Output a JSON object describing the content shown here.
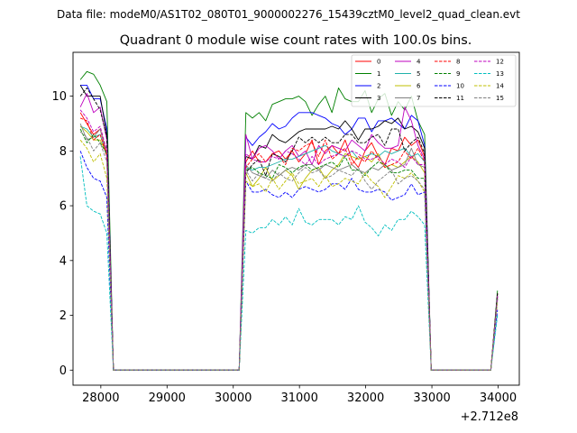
{
  "chart_data": {
    "type": "line",
    "suptitle": "Data file: modeM0/AS1T02_080T01_9000002276_15439cztM0_level2_quad_clean.evt",
    "title": "Quadrant 0 module wise count rates with 100.0s bins.",
    "xlabel": "",
    "ylabel": "",
    "x_offset_label": "+2.712e8",
    "xlim": [
      27580,
      34320
    ],
    "ylim": [
      -0.55,
      11.6
    ],
    "xticks": [
      28000,
      29000,
      30000,
      31000,
      32000,
      33000,
      34000
    ],
    "xtick_labels": [
      "28000",
      "29000",
      "30000",
      "31000",
      "32000",
      "33000",
      "34000"
    ],
    "yticks": [
      0,
      2,
      4,
      6,
      8,
      10
    ],
    "ytick_labels": [
      "0",
      "2",
      "4",
      "6",
      "8",
      "10"
    ],
    "legend_location": "upper right",
    "legend_columns": 4,
    "x": [
      27690,
      27790,
      27890,
      27990,
      28090,
      28190,
      30090,
      30190,
      30290,
      30390,
      30490,
      30590,
      30690,
      30790,
      30890,
      30990,
      31090,
      31190,
      31290,
      31390,
      31490,
      31590,
      31690,
      31790,
      31890,
      31990,
      32090,
      32190,
      32290,
      32390,
      32490,
      32590,
      32690,
      32790,
      32890,
      32990,
      33890,
      33990
    ],
    "series": [
      {
        "name": "0",
        "color": "#ff0000",
        "dash": "solid",
        "values": [
          9.4,
          9.0,
          8.6,
          8.8,
          7.9,
          0,
          0,
          7.6,
          8.0,
          7.6,
          7.6,
          7.9,
          8.0,
          7.7,
          8.0,
          7.6,
          7.9,
          8.4,
          7.5,
          8.0,
          8.2,
          7.9,
          8.4,
          7.7,
          7.4,
          8.0,
          8.3,
          7.8,
          7.5,
          8.1,
          8.0,
          8.5,
          8.2,
          8.4,
          7.8,
          0,
          0,
          2.8
        ]
      },
      {
        "name": "1",
        "color": "#008000",
        "dash": "solid",
        "values": [
          10.6,
          10.9,
          10.8,
          10.4,
          9.8,
          0,
          0,
          9.4,
          9.2,
          9.4,
          9.1,
          9.7,
          9.8,
          9.9,
          9.9,
          10.0,
          9.8,
          9.3,
          9.7,
          10.0,
          9.4,
          10.3,
          9.9,
          9.8,
          9.8,
          10.2,
          9.4,
          9.9,
          10.1,
          9.3,
          9.8,
          9.5,
          10.0,
          9.1,
          8.6,
          0,
          0,
          2.9
        ]
      },
      {
        "name": "2",
        "color": "#0000ff",
        "dash": "solid",
        "values": [
          10.4,
          10.4,
          9.9,
          9.9,
          8.8,
          0,
          0,
          8.5,
          8.2,
          8.5,
          8.7,
          9.0,
          8.8,
          8.9,
          9.2,
          9.4,
          9.4,
          9.4,
          9.3,
          9.2,
          9.0,
          8.9,
          8.6,
          8.8,
          9.2,
          9.2,
          8.7,
          9.1,
          9.1,
          9.2,
          9.0,
          8.8,
          9.3,
          9.1,
          8.2,
          0,
          0,
          2.7
        ]
      },
      {
        "name": "3",
        "color": "#000000",
        "dash": "solid",
        "values": [
          10.4,
          10.0,
          10.0,
          10.0,
          8.6,
          0,
          0,
          7.8,
          7.7,
          8.2,
          8.1,
          8.6,
          8.4,
          8.3,
          8.5,
          8.7,
          8.8,
          8.8,
          8.8,
          8.8,
          8.9,
          8.8,
          9.1,
          8.8,
          8.4,
          8.8,
          8.8,
          8.9,
          9.1,
          9.0,
          9.2,
          8.8,
          8.9,
          8.7,
          8.1,
          0,
          0,
          2.8
        ]
      },
      {
        "name": "4",
        "color": "#bf00bf",
        "dash": "solid",
        "values": [
          9.6,
          10.1,
          9.4,
          9.6,
          8.4,
          0,
          0,
          8.6,
          7.7,
          8.1,
          8.2,
          8.0,
          7.7,
          8.0,
          8.2,
          7.8,
          8.0,
          7.5,
          8.2,
          7.9,
          8.2,
          8.1,
          8.0,
          8.4,
          8.2,
          8.0,
          8.6,
          8.3,
          8.1,
          8.1,
          8.2,
          9.6,
          9.1,
          8.2,
          7.7,
          0,
          0,
          2.6
        ]
      },
      {
        "name": "5",
        "color": "#20b2aa",
        "dash": "solid",
        "values": [
          8.9,
          8.8,
          8.5,
          8.6,
          7.8,
          0,
          0,
          7.4,
          7.3,
          7.4,
          7.4,
          7.5,
          7.6,
          7.7,
          7.7,
          7.8,
          7.9,
          8.0,
          8.1,
          8.2,
          8.0,
          7.9,
          7.8,
          8.0,
          7.7,
          7.8,
          7.9,
          7.8,
          8.0,
          7.9,
          8.0,
          8.1,
          7.8,
          7.9,
          7.6,
          0,
          0,
          2.7
        ]
      },
      {
        "name": "6",
        "color": "#bfbf00",
        "dash": "solid",
        "values": [
          8.9,
          8.7,
          8.4,
          8.4,
          7.9,
          0,
          0,
          7.2,
          6.7,
          7.0,
          7.4,
          6.9,
          7.1,
          7.3,
          7.1,
          6.6,
          7.0,
          7.3,
          7.4,
          7.0,
          7.3,
          7.5,
          7.9,
          7.8,
          7.7,
          7.8,
          7.6,
          7.9,
          7.4,
          7.5,
          7.4,
          7.6,
          7.8,
          7.6,
          7.2,
          0,
          0,
          2.7
        ]
      },
      {
        "name": "7",
        "color": "#808080",
        "dash": "solid",
        "values": [
          9.0,
          8.4,
          8.5,
          8.8,
          7.8,
          0,
          0,
          7.5,
          7.2,
          7.1,
          7.0,
          7.3,
          7.1,
          7.3,
          7.4,
          7.3,
          7.5,
          7.5,
          7.3,
          7.5,
          7.4,
          7.3,
          7.4,
          7.5,
          7.3,
          7.2,
          7.4,
          7.3,
          7.5,
          7.3,
          7.4,
          7.5,
          8.1,
          7.5,
          7.4,
          0,
          0,
          2.7
        ]
      },
      {
        "name": "8",
        "color": "#ff0000",
        "dash": "dashed",
        "values": [
          9.2,
          9.1,
          8.4,
          8.6,
          7.8,
          0,
          0,
          7.4,
          7.7,
          7.9,
          7.6,
          7.9,
          7.8,
          7.5,
          8.1,
          8.0,
          8.2,
          8.3,
          7.8,
          8.4,
          7.7,
          7.9,
          8.1,
          7.5,
          7.8,
          7.6,
          8.0,
          7.7,
          7.4,
          7.5,
          7.6,
          8.0,
          7.7,
          8.1,
          7.6,
          0,
          0,
          2.7
        ]
      },
      {
        "name": "9",
        "color": "#008000",
        "dash": "dashed",
        "values": [
          8.8,
          8.3,
          8.6,
          8.3,
          7.9,
          0,
          0,
          7.3,
          7.4,
          7.2,
          7.1,
          7.0,
          7.5,
          7.4,
          7.2,
          7.4,
          7.5,
          7.3,
          7.4,
          7.5,
          7.6,
          7.4,
          7.8,
          7.3,
          7.3,
          7.1,
          7.4,
          7.6,
          7.5,
          7.2,
          7.2,
          7.3,
          7.3,
          7.0,
          7.0,
          0,
          0,
          2.6
        ]
      },
      {
        "name": "10",
        "color": "#0000ff",
        "dash": "dashed",
        "values": [
          8.0,
          7.4,
          7.0,
          6.9,
          6.3,
          0,
          0,
          6.9,
          6.5,
          6.5,
          6.6,
          6.4,
          6.3,
          6.5,
          6.3,
          6.6,
          6.7,
          6.6,
          6.5,
          6.6,
          6.8,
          6.8,
          6.6,
          7.0,
          6.6,
          6.5,
          6.5,
          6.6,
          6.5,
          6.2,
          6.3,
          6.4,
          6.8,
          6.4,
          6.5,
          0,
          0,
          2.2
        ]
      },
      {
        "name": "11",
        "color": "#000000",
        "dash": "dashed",
        "values": [
          10.0,
          10.3,
          9.9,
          9.5,
          8.5,
          0,
          0,
          7.2,
          7.5,
          7.7,
          7.1,
          7.9,
          7.8,
          7.6,
          8.0,
          8.5,
          8.3,
          8.5,
          8.3,
          8.5,
          8.3,
          8.3,
          8.6,
          8.6,
          8.3,
          8.3,
          8.5,
          8.6,
          8.2,
          8.8,
          8.8,
          8.0,
          8.3,
          8.5,
          7.9,
          0,
          0,
          2.8
        ]
      },
      {
        "name": "12",
        "color": "#bf00bf",
        "dash": "dashed",
        "values": [
          9.5,
          9.2,
          8.7,
          8.9,
          8.0,
          0,
          0,
          7.9,
          7.7,
          7.6,
          7.6,
          7.8,
          7.7,
          8.0,
          7.9,
          7.7,
          7.5,
          7.8,
          7.5,
          7.7,
          7.8,
          7.9,
          7.8,
          8.0,
          7.9,
          7.7,
          7.7,
          7.8,
          7.5,
          7.7,
          7.6,
          7.4,
          7.8,
          7.5,
          7.5,
          0,
          0,
          2.7
        ]
      },
      {
        "name": "13",
        "color": "#00bfbf",
        "dash": "dashed",
        "values": [
          7.8,
          6.0,
          5.8,
          5.7,
          5.0,
          0,
          0,
          5.1,
          5.0,
          5.2,
          5.2,
          5.5,
          5.3,
          5.6,
          5.3,
          5.9,
          5.4,
          5.3,
          5.5,
          5.5,
          5.5,
          5.3,
          5.6,
          5.5,
          6.0,
          5.4,
          5.2,
          4.9,
          5.3,
          5.1,
          5.5,
          5.5,
          5.8,
          5.6,
          5.3,
          0,
          0,
          2.0
        ]
      },
      {
        "name": "14",
        "color": "#bfbf00",
        "dash": "dashed",
        "values": [
          8.4,
          8.1,
          7.6,
          7.9,
          7.0,
          0,
          0,
          6.9,
          6.7,
          6.8,
          6.5,
          7.0,
          6.6,
          6.9,
          7.2,
          6.8,
          6.9,
          7.0,
          6.7,
          7.1,
          6.7,
          6.8,
          7.0,
          6.9,
          6.8,
          7.2,
          6.9,
          6.7,
          6.3,
          6.7,
          7.1,
          7.0,
          7.2,
          6.9,
          6.5,
          0,
          0,
          2.5
        ]
      },
      {
        "name": "15",
        "color": "#808080",
        "dash": "dashed",
        "values": [
          8.7,
          8.5,
          8.0,
          8.3,
          7.6,
          0,
          0,
          7.3,
          6.9,
          7.2,
          7.0,
          6.9,
          7.2,
          7.0,
          6.9,
          7.2,
          7.4,
          7.2,
          7.3,
          7.0,
          7.1,
          7.3,
          7.2,
          7.1,
          7.4,
          6.9,
          6.6,
          6.9,
          7.1,
          7.3,
          6.8,
          7.0,
          7.1,
          6.9,
          6.6,
          0,
          0,
          2.6
        ]
      }
    ]
  }
}
